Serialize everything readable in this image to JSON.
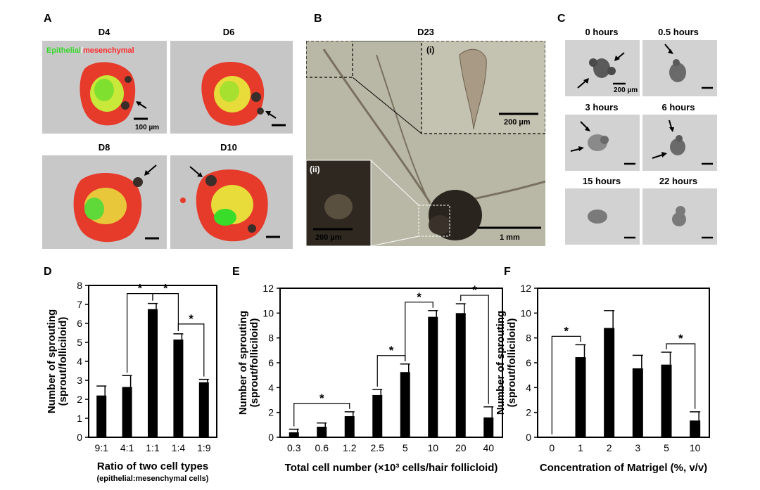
{
  "panels": {
    "a": {
      "label": "A",
      "overlay_text": {
        "epithelial": "Epithelial",
        "slash": "/",
        "mesenchymal": "mesenchymal"
      },
      "images": [
        {
          "title": "D4",
          "scale": "100 µm"
        },
        {
          "title": "D6"
        },
        {
          "title": "D8"
        },
        {
          "title": "D10"
        }
      ]
    },
    "b": {
      "label": "B",
      "title": "D23",
      "inset_i": "(i)",
      "inset_ii": "(ii)",
      "scale_i": "200 µm",
      "scale_ii": "200 µm",
      "scale_main": "1 mm"
    },
    "c": {
      "label": "C",
      "images": [
        {
          "title": "0 hours",
          "scale": "200 µm"
        },
        {
          "title": "0.5 hours"
        },
        {
          "title": "3 hours"
        },
        {
          "title": "6 hours"
        },
        {
          "title": "15 hours"
        },
        {
          "title": "22 hours"
        }
      ]
    },
    "d": {
      "label": "D"
    },
    "e": {
      "label": "E"
    },
    "f": {
      "label": "F"
    }
  },
  "colors": {
    "green": "#35d82a",
    "red": "#ff2a2a",
    "bar": "#000000",
    "micro_bg": "#c6c6c6",
    "fibroblast_bg": "#b9b8a6"
  },
  "chart_data": [
    {
      "type": "bar",
      "panel": "D",
      "categories": [
        "9:1",
        "4:1",
        "1:1",
        "1:4",
        "1:9"
      ],
      "values": [
        2.2,
        2.65,
        6.75,
        5.15,
        2.9
      ],
      "errors": [
        0.5,
        0.6,
        0.3,
        0.3,
        0.15
      ],
      "ylim": [
        0,
        8
      ],
      "yticks": [
        0,
        1,
        2,
        3,
        4,
        5,
        6,
        7,
        8
      ],
      "ylabel": "Number of sprouting",
      "ylabel2": "(sprout/folliciloid)",
      "xlabel": "Ratio of two cell types",
      "xlabel2": "(epithelial:mesenchymal cells)",
      "significance": [
        {
          "from": "4:1",
          "to": "1:1",
          "label": "*"
        },
        {
          "from": "1:1",
          "to": "1:4",
          "label": "*"
        },
        {
          "from": "1:4",
          "to": "1:9",
          "label": "*"
        }
      ]
    },
    {
      "type": "bar",
      "panel": "E",
      "categories": [
        "0.3",
        "0.6",
        "1.2",
        "2.5",
        "5",
        "10",
        "20",
        "40"
      ],
      "values": [
        0.4,
        0.85,
        1.7,
        3.4,
        5.25,
        9.7,
        10.0,
        1.6
      ],
      "errors": [
        0.25,
        0.3,
        0.35,
        0.45,
        0.65,
        0.5,
        0.75,
        0.85
      ],
      "ylim": [
        0,
        12
      ],
      "yticks": [
        0,
        2,
        4,
        6,
        8,
        10,
        12
      ],
      "ylabel": "Number of sprouting",
      "ylabel2": "(sprout/folliciloid)",
      "xlabel": "Total cell number (×10³ cells/hair follicloid)",
      "significance": [
        {
          "from": "0.3",
          "to": "1.2",
          "label": "*"
        },
        {
          "from": "2.5",
          "to": "5",
          "label": "*"
        },
        {
          "from": "5",
          "to": "10",
          "label": "*"
        },
        {
          "from": "20",
          "to": "40",
          "label": "*"
        }
      ]
    },
    {
      "type": "bar",
      "panel": "F",
      "categories": [
        "0",
        "1",
        "2",
        "3",
        "5",
        "10"
      ],
      "values": [
        0,
        6.45,
        8.8,
        5.55,
        5.85,
        1.35
      ],
      "errors": [
        0,
        1.0,
        1.4,
        1.05,
        1.0,
        0.7
      ],
      "ylim": [
        0,
        12
      ],
      "yticks": [
        0,
        2,
        4,
        6,
        8,
        10,
        12
      ],
      "ylabel": "Number of sprouting",
      "ylabel2": "(sprout/folliciloid)",
      "xlabel": "Concentration of Matrigel (%, v/v)",
      "significance": [
        {
          "from": "0",
          "to": "1",
          "label": "*"
        },
        {
          "from": "5",
          "to": "10",
          "label": "*"
        }
      ]
    }
  ]
}
